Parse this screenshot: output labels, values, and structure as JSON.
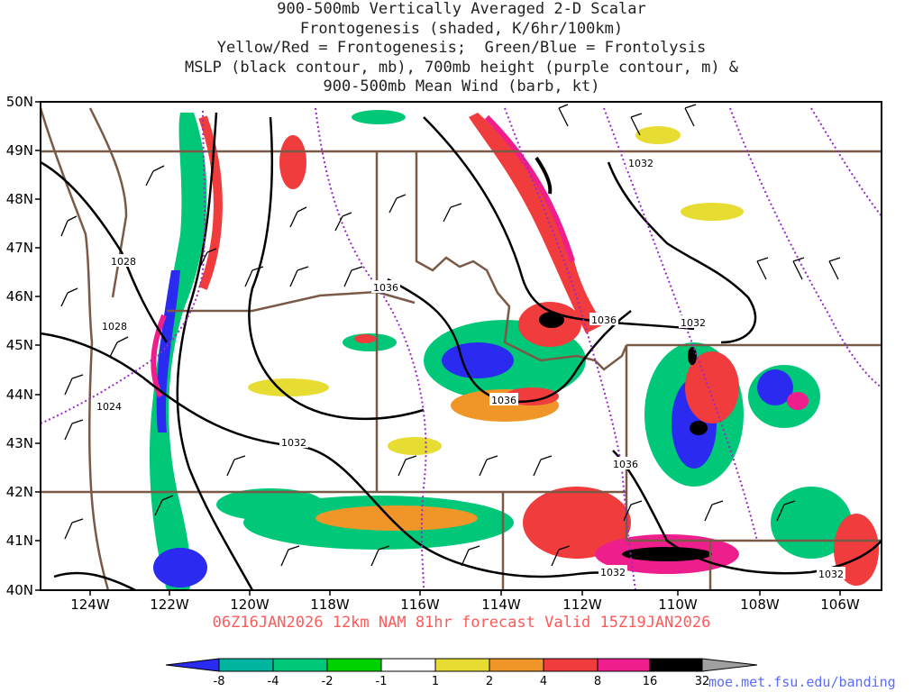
{
  "title_lines": [
    "900-500mb Vertically Averaged 2-D Scalar",
    "Frontogenesis (shaded, K/6hr/100km)",
    "Yellow/Red = Frontogenesis;  Green/Blue = Frontolysis",
    "MSLP (black contour, mb), 700mb height (purple contour, m) &",
    "900-500mb Mean Wind (barb, kt)"
  ],
  "subtitle": "06Z16JAN2026 12km NAM 81hr forecast Valid 15Z19JAN2026",
  "credit": "moe.met.fsu.edu/banding",
  "lat_labels": [
    "50N",
    "49N",
    "48N",
    "47N",
    "46N",
    "45N",
    "44N",
    "43N",
    "42N",
    "41N",
    "40N"
  ],
  "lon_labels": [
    "124W",
    "122W",
    "120W",
    "118W",
    "116W",
    "114W",
    "112W",
    "110W",
    "108W",
    "106W"
  ],
  "pressure_labels": [
    "1028",
    "1028",
    "1024",
    "1032",
    "1036",
    "1036",
    "1036",
    "1032",
    "1036",
    "1032",
    "1032",
    "1032"
  ],
  "colorbar": {
    "ticks": [
      "-8",
      "-4",
      "-2",
      "-1",
      "1",
      "2",
      "4",
      "8",
      "16",
      "32"
    ],
    "colors": [
      "#2a2af0",
      "#00b4a0",
      "#00c878",
      "#00d200",
      "#ffffff",
      "#e6dc32",
      "#f09628",
      "#f03c3c",
      "#ee1e8c",
      "#000000",
      "#a0a0a0"
    ]
  },
  "colors": {
    "mslp_contour": "#000000",
    "height_contour": "#9a28c8",
    "borders": "#7a5a46",
    "subtitle": "#ff5a5a",
    "credit": "#5a6cff"
  }
}
